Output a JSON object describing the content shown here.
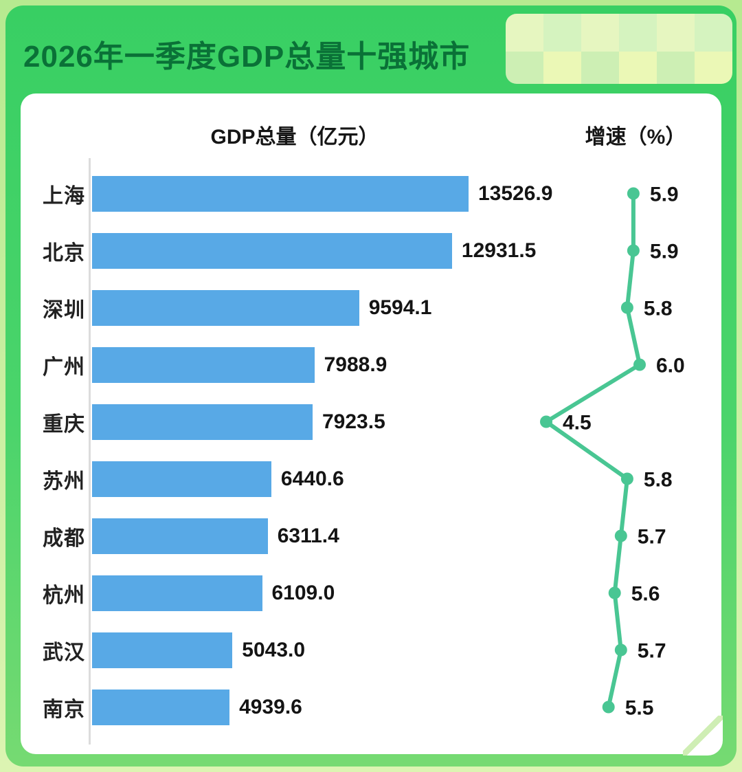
{
  "header": {
    "title": "2026年一季度GDP总量十强城市"
  },
  "chart": {
    "left_title": "GDP总量（亿元）",
    "right_title": "增速（%）"
  },
  "colors": {
    "panel_green": "#38cf63",
    "title_green": "#0a7137",
    "bar_blue": "#58a9e6",
    "line_green": "#49c693",
    "text_dark": "#141414"
  },
  "chart_data": {
    "type": "bar",
    "title": "2026年一季度GDP总量十强城市",
    "categories": [
      "上海",
      "北京",
      "深圳",
      "广州",
      "重庆",
      "苏州",
      "成都",
      "杭州",
      "武汉",
      "南京"
    ],
    "series": [
      {
        "name": "GDP总量（亿元）",
        "type": "bar",
        "values": [
          13526.9,
          12931.5,
          9594.1,
          7988.9,
          7923.5,
          6440.6,
          6311.4,
          6109.0,
          5043.0,
          4939.6
        ]
      },
      {
        "name": "增速（%）",
        "type": "line",
        "values": [
          5.9,
          5.9,
          5.8,
          6.0,
          4.5,
          5.8,
          5.7,
          5.6,
          5.7,
          5.5
        ]
      }
    ],
    "bar_color": "#58a9e6",
    "line_color": "#49c693",
    "bar_value_range": [
      0,
      13526.9
    ],
    "line_value_range": [
      4.5,
      6.0
    ],
    "orientation": "horizontal",
    "grid": false,
    "legend": "none"
  }
}
